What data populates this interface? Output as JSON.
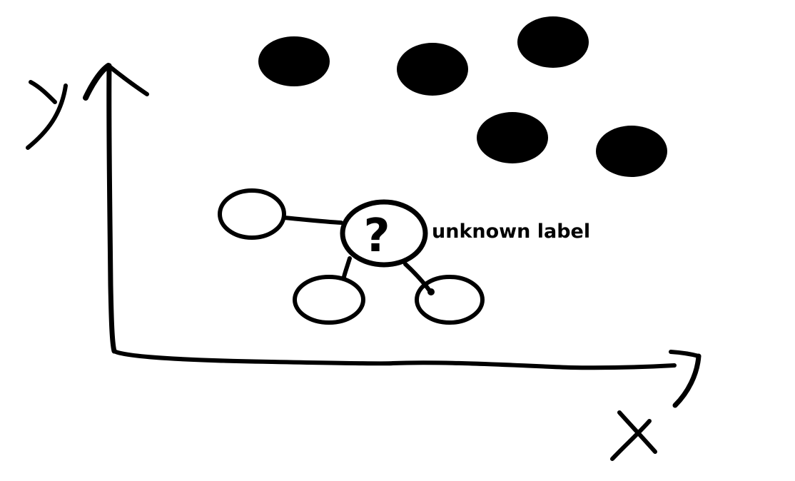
{
  "axes": {
    "x_label": "X",
    "y_label": "Y"
  },
  "query_point": {
    "symbol": "?",
    "annotation": "unknown label"
  },
  "classes": {
    "known_filled_count": 5,
    "known_hollow_count": 3
  },
  "colors": {
    "ink": "#000000",
    "background": "#ffffff"
  }
}
